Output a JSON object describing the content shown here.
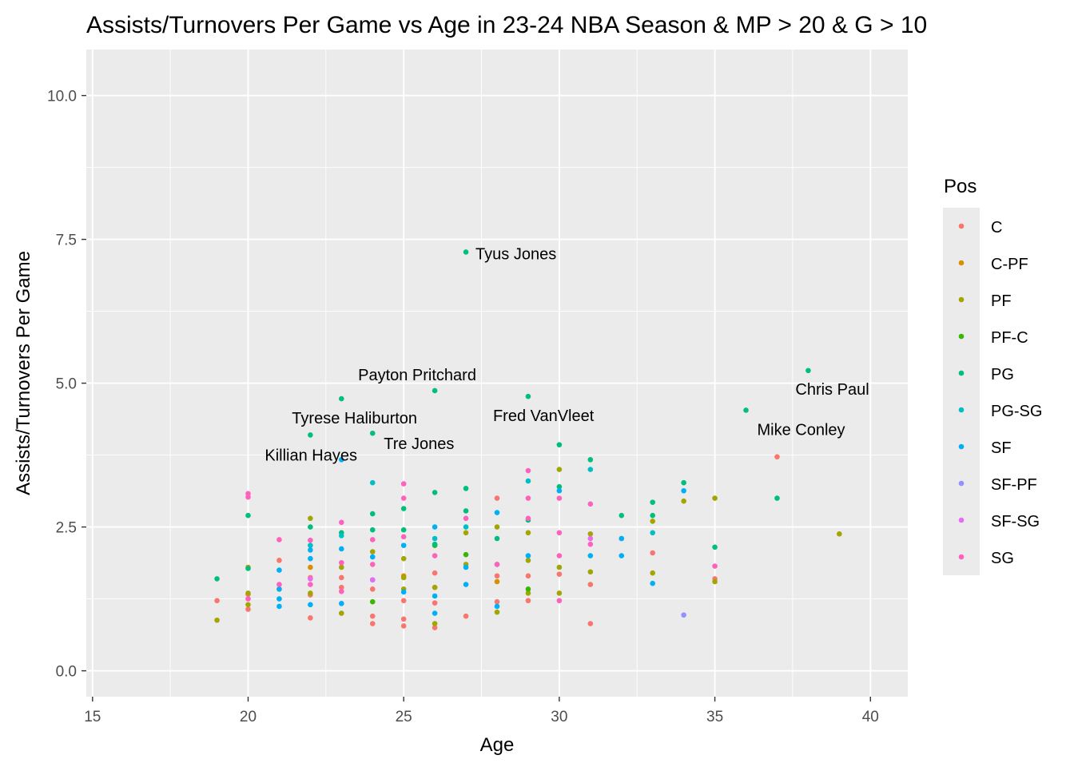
{
  "chart_data": {
    "type": "scatter",
    "title": "Assists/Turnovers Per Game vs Age in 23-24 NBA Season & MP > 20 & G > 10",
    "xlabel": "Age",
    "ylabel": "Assists/Turnovers Per Game",
    "xlim": [
      14.8,
      41.2
    ],
    "ylim": [
      -0.45,
      10.8
    ],
    "x_ticks": [
      15,
      20,
      25,
      30,
      35,
      40
    ],
    "x_tick_labels": [
      "15",
      "20",
      "25",
      "30",
      "35",
      "40"
    ],
    "y_ticks": [
      0,
      2.5,
      5,
      7.5,
      10
    ],
    "y_tick_labels": [
      "0.0",
      "2.5",
      "5.0",
      "7.5",
      "10.0"
    ],
    "grid": true,
    "legend": {
      "title": "Pos",
      "placement": "right"
    },
    "series": [
      {
        "name": "C",
        "color": "#F8766D",
        "points": [
          [
            19,
            1.22
          ],
          [
            20,
            1.07
          ],
          [
            20,
            1.33
          ],
          [
            21,
            1.92
          ],
          [
            21,
            1.42
          ],
          [
            22,
            0.92
          ],
          [
            22,
            1.32
          ],
          [
            22,
            1.62
          ],
          [
            23,
            1.45
          ],
          [
            23,
            1.62
          ],
          [
            24,
            0.82
          ],
          [
            24,
            0.95
          ],
          [
            24,
            1.42
          ],
          [
            25,
            0.78
          ],
          [
            25,
            0.9
          ],
          [
            25,
            1.22
          ],
          [
            26,
            0.75
          ],
          [
            26,
            1.18
          ],
          [
            26,
            1.45
          ],
          [
            26,
            1.7
          ],
          [
            27,
            0.95
          ],
          [
            28,
            1.2
          ],
          [
            28,
            1.65
          ],
          [
            28,
            3.0
          ],
          [
            29,
            1.22
          ],
          [
            29,
            1.65
          ],
          [
            30,
            1.68
          ],
          [
            31,
            0.82
          ],
          [
            31,
            1.5
          ],
          [
            32,
            2.3
          ],
          [
            33,
            2.05
          ],
          [
            35,
            1.6
          ],
          [
            37,
            3.72
          ]
        ]
      },
      {
        "name": "C-PF",
        "color": "#D89000",
        "points": [
          [
            20,
            1.8
          ],
          [
            22,
            1.8
          ],
          [
            25,
            1.65
          ],
          [
            28,
            1.55
          ]
        ]
      },
      {
        "name": "PF",
        "color": "#A3A500",
        "points": [
          [
            19,
            0.88
          ],
          [
            20,
            1.15
          ],
          [
            20,
            1.35
          ],
          [
            22,
            2.65
          ],
          [
            22,
            1.35
          ],
          [
            23,
            1.0
          ],
          [
            23,
            1.8
          ],
          [
            24,
            2.07
          ],
          [
            25,
            1.95
          ],
          [
            25,
            1.62
          ],
          [
            25,
            1.42
          ],
          [
            26,
            0.82
          ],
          [
            26,
            1.45
          ],
          [
            27,
            1.85
          ],
          [
            27,
            2.4
          ],
          [
            28,
            1.02
          ],
          [
            28,
            2.5
          ],
          [
            29,
            1.92
          ],
          [
            29,
            2.4
          ],
          [
            29,
            1.35
          ],
          [
            30,
            1.35
          ],
          [
            30,
            1.8
          ],
          [
            30,
            3.5
          ],
          [
            31,
            1.72
          ],
          [
            31,
            2.38
          ],
          [
            33,
            1.7
          ],
          [
            33,
            2.6
          ],
          [
            34,
            2.95
          ],
          [
            35,
            3.0
          ],
          [
            35,
            1.55
          ],
          [
            39,
            2.38
          ]
        ]
      },
      {
        "name": "PF-C",
        "color": "#39B600",
        "points": [
          [
            24,
            1.2
          ],
          [
            26,
            2.18
          ],
          [
            27,
            2.02
          ],
          [
            29,
            1.42
          ]
        ]
      },
      {
        "name": "PG",
        "color": "#00BF7D",
        "points": [
          [
            19,
            1.6
          ],
          [
            20,
            1.78
          ],
          [
            20,
            2.7
          ],
          [
            22,
            2.5
          ],
          [
            22,
            4.1
          ],
          [
            23,
            4.73
          ],
          [
            23,
            2.4
          ],
          [
            24,
            2.45
          ],
          [
            24,
            2.73
          ],
          [
            24,
            4.13
          ],
          [
            25,
            2.82
          ],
          [
            25,
            2.45
          ],
          [
            26,
            4.87
          ],
          [
            26,
            3.1
          ],
          [
            26,
            2.2
          ],
          [
            27,
            7.28
          ],
          [
            27,
            3.17
          ],
          [
            27,
            2.78
          ],
          [
            28,
            2.3
          ],
          [
            29,
            4.77
          ],
          [
            29,
            2.62
          ],
          [
            30,
            3.93
          ],
          [
            30,
            3.2
          ],
          [
            31,
            3.67
          ],
          [
            32,
            2.7
          ],
          [
            33,
            2.93
          ],
          [
            33,
            2.7
          ],
          [
            34,
            3.27
          ],
          [
            35,
            2.15
          ],
          [
            36,
            4.53
          ],
          [
            37,
            3.0
          ],
          [
            38,
            5.22
          ]
        ]
      },
      {
        "name": "PG-SG",
        "color": "#00BFC4",
        "points": [
          [
            22,
            2.18
          ],
          [
            23,
            2.35
          ],
          [
            24,
            3.27
          ],
          [
            26,
            2.3
          ],
          [
            27,
            2.5
          ],
          [
            29,
            3.3
          ],
          [
            31,
            3.5
          ],
          [
            33,
            2.4
          ]
        ]
      },
      {
        "name": "SF",
        "color": "#00B0F6",
        "points": [
          [
            21,
            1.12
          ],
          [
            21,
            1.25
          ],
          [
            21,
            1.42
          ],
          [
            21,
            1.75
          ],
          [
            22,
            1.15
          ],
          [
            22,
            1.95
          ],
          [
            22,
            2.1
          ],
          [
            23,
            1.17
          ],
          [
            23,
            2.12
          ],
          [
            23,
            3.67
          ],
          [
            24,
            1.58
          ],
          [
            24,
            1.98
          ],
          [
            25,
            1.37
          ],
          [
            25,
            2.18
          ],
          [
            26,
            1.0
          ],
          [
            26,
            1.3
          ],
          [
            26,
            2.5
          ],
          [
            27,
            1.5
          ],
          [
            27,
            1.8
          ],
          [
            28,
            1.12
          ],
          [
            28,
            1.85
          ],
          [
            28,
            2.75
          ],
          [
            29,
            2.0
          ],
          [
            30,
            3.13
          ],
          [
            31,
            2.0
          ],
          [
            32,
            2.0
          ],
          [
            32,
            2.3
          ],
          [
            33,
            1.52
          ],
          [
            34,
            3.13
          ]
        ]
      },
      {
        "name": "SF-PF",
        "color": "#9590FF",
        "points": [
          [
            34,
            0.97
          ]
        ]
      },
      {
        "name": "SF-SG",
        "color": "#E76BF3",
        "points": [
          [
            22,
            1.6
          ],
          [
            24,
            1.58
          ],
          [
            31,
            2.3
          ]
        ]
      },
      {
        "name": "SG",
        "color": "#FF62BC",
        "points": [
          [
            20,
            3.02
          ],
          [
            20,
            3.08
          ],
          [
            20,
            1.25
          ],
          [
            21,
            1.5
          ],
          [
            21,
            2.28
          ],
          [
            22,
            1.5
          ],
          [
            22,
            2.27
          ],
          [
            23,
            1.38
          ],
          [
            23,
            1.88
          ],
          [
            23,
            2.58
          ],
          [
            24,
            1.85
          ],
          [
            24,
            2.28
          ],
          [
            25,
            3.25
          ],
          [
            25,
            3.0
          ],
          [
            25,
            2.33
          ],
          [
            26,
            2.0
          ],
          [
            27,
            2.65
          ],
          [
            28,
            1.85
          ],
          [
            29,
            3.48
          ],
          [
            29,
            3.0
          ],
          [
            29,
            2.65
          ],
          [
            30,
            2.4
          ],
          [
            30,
            2.0
          ],
          [
            30,
            1.22
          ],
          [
            30,
            3.0
          ],
          [
            31,
            2.9
          ],
          [
            31,
            2.2
          ],
          [
            35,
            1.82
          ]
        ]
      }
    ],
    "annotations": [
      {
        "label": "Tyus Jones",
        "x": 27,
        "y": 7.28
      },
      {
        "label": "Payton Pritchard",
        "x": 26,
        "y": 4.87
      },
      {
        "label": "Chris Paul",
        "x": 38,
        "y": 5.22
      },
      {
        "label": "Tyrese Haliburton",
        "x": 23,
        "y": 4.73
      },
      {
        "label": "Fred VanVleet",
        "x": 29,
        "y": 4.77
      },
      {
        "label": "Mike Conley",
        "x": 36,
        "y": 4.53
      },
      {
        "label": "Tre Jones",
        "x": 24,
        "y": 4.13
      },
      {
        "label": "Killian Hayes",
        "x": 22,
        "y": 4.1
      }
    ]
  }
}
